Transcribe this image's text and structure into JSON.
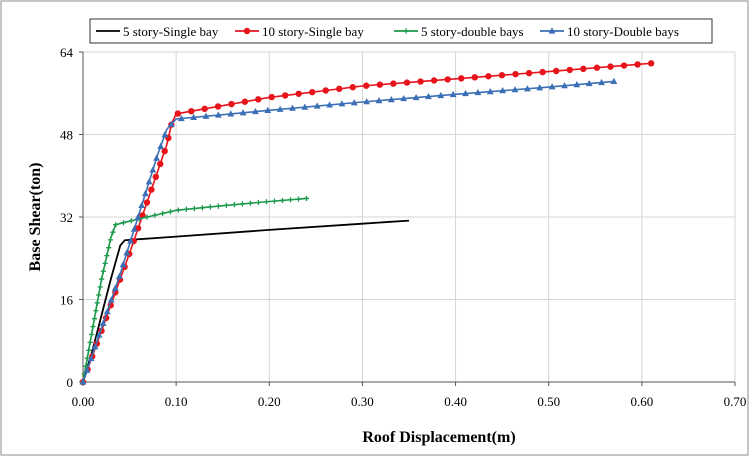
{
  "chart_data": {
    "type": "line",
    "xlabel": "Roof Displacement(m)",
    "ylabel": "Base Shear(ton)",
    "xlim": [
      0,
      0.7
    ],
    "ylim": [
      0,
      64
    ],
    "x_ticks": [
      "0.00",
      "0.10",
      "0.20",
      "0.30",
      "0.40",
      "0.50",
      "0.60",
      "0.70"
    ],
    "y_ticks": [
      "0",
      "16",
      "32",
      "48",
      "64"
    ],
    "grid": "vertical",
    "legend_position": "top",
    "series": [
      {
        "name": "5 story-Single bay",
        "color": "#000000",
        "marker": "none",
        "x": [
          0,
          0.01,
          0.02,
          0.03,
          0.04,
          0.045,
          0.1,
          0.2,
          0.3,
          0.35
        ],
        "y": [
          0,
          6,
          13,
          20,
          26.5,
          27.5,
          28.2,
          29.5,
          30.7,
          31.3
        ]
      },
      {
        "name": "10 story-Single bay",
        "color": "#e8141b",
        "marker": "circle",
        "x": [
          0,
          0.05,
          0.09,
          0.095,
          0.1,
          0.2,
          0.3,
          0.4,
          0.5,
          0.61
        ],
        "y": [
          0,
          25,
          46,
          50,
          52,
          55.2,
          57.4,
          58.8,
          60.2,
          61.8
        ]
      },
      {
        "name": "5 story-double bays",
        "color": "#1a9a4a",
        "marker": "plus",
        "x": [
          0,
          0.01,
          0.02,
          0.03,
          0.035,
          0.05,
          0.1,
          0.15,
          0.2,
          0.24
        ],
        "y": [
          0,
          10,
          20,
          28,
          30.5,
          31.2,
          33.3,
          34.2,
          35,
          35.6
        ]
      },
      {
        "name": "10 story-Double bays",
        "color": "#3b6fb6",
        "marker": "triangle",
        "x": [
          0,
          0.04,
          0.08,
          0.09,
          0.1,
          0.2,
          0.3,
          0.4,
          0.5,
          0.57
        ],
        "y": [
          0,
          21,
          44,
          49,
          51,
          52.7,
          54.3,
          55.8,
          57.2,
          58.3
        ]
      }
    ]
  }
}
